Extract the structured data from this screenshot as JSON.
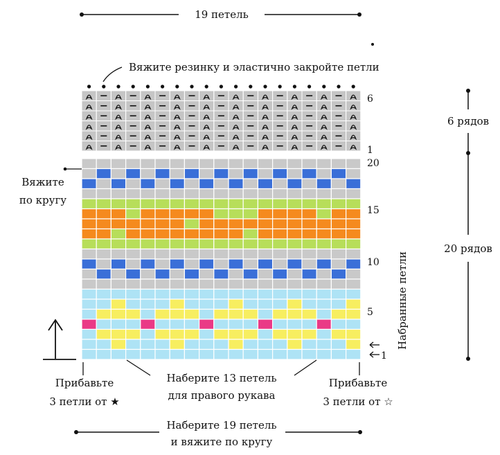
{
  "labels": {
    "top_width": "19 петель",
    "bind_off": "Вяжите резинку и эластично закройте петли",
    "knit_round_1": "Вяжите",
    "knit_round_2": "по кругу",
    "rows_rib": "6 рядов",
    "rows_main": "20 рядов",
    "picked_up": "Набранные петли",
    "cast_on_sleeve_1": "Наберите 13 петель",
    "cast_on_sleeve_2": "для правого рукава",
    "inc_left_1": "Прибавьте",
    "inc_left_2": "3 петли от ★",
    "inc_right_1": "Прибавьте",
    "inc_right_2": "3 петли от ☆",
    "bottom_1": "Наберите 19 петель",
    "bottom_2": "и вяжите по кругу"
  },
  "row_numbers": {
    "rib_6": "6",
    "rib_1": "1",
    "main_20": "20",
    "main_15": "15",
    "main_10": "10",
    "main_5": "5",
    "main_1": "1"
  },
  "colors": {
    "grey": "#c9c9c9",
    "blue": "#3a6fd8",
    "green": "#b7de5a",
    "orange": "#f58a1e",
    "cyan": "#aee3f5",
    "yellow": "#f7ee60",
    "pink": "#ea3a86",
    "rib_bg": "#c5c5c5"
  },
  "chart": {
    "columns": 19,
    "rib_rows": 6,
    "main_rows": 20,
    "rows_top_to_bottom": [
      "GGGGGGGGGGGGGGGGGGG",
      "GBGBGBGBGBGBGBGBGBG",
      "BGBGBGBGBGBGBGBGBGB",
      "GGGGGGGGGGGGGGGGGGG",
      "LLLLLLLLLLLLLLLLLLL",
      "OOOLOOOOOLLLOOOOLOO",
      "OOOOOOOLOOOOOOOOOOO",
      "OOLOOOOOOOOLOOOOOOO",
      "LLLLLLLLLLLLLLLLLLL",
      "GGGGGGGGGGGGGGGGGGG",
      "BGBGBGBGBGBGBGBGBGB",
      "GBGBGBGBGBGBGBGBGBG",
      "GGGGGGGGGGGGGGGGGGG",
      "CCCCCCCCCCCCCCCCCCC",
      "CCYCCCYCCCYCCCYCCCY",
      "CYYYCYYYCYYYCYYYCYY",
      "PCCCPCCCPCCCPCCCPCC",
      "CYYYCYYYCYYYCYYYCYY",
      "CCYCCCYCCCYCCCYCCCY",
      "CCCCCCCCCCCCCCCCCCC"
    ]
  }
}
